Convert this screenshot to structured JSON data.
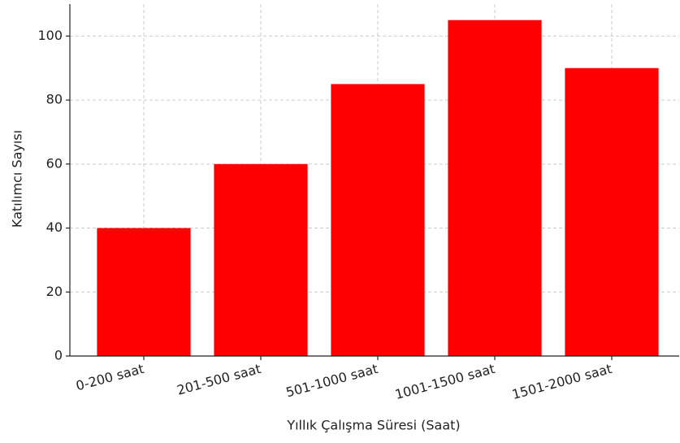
{
  "chart_data": {
    "type": "bar",
    "categories": [
      "0-200 saat",
      "201-500 saat",
      "501-1000 saat",
      "1001-1500 saat",
      "1501-2000 saat"
    ],
    "values": [
      40,
      60,
      85,
      105,
      90
    ],
    "color": "#ff0000",
    "x_label": "Yıllık Çalışma Süresi (Saat)",
    "y_label": "Katılımcı Sayısı",
    "ylim": [
      0,
      110
    ],
    "yticks": [
      0,
      20,
      40,
      60,
      80,
      100
    ],
    "grid": true
  }
}
